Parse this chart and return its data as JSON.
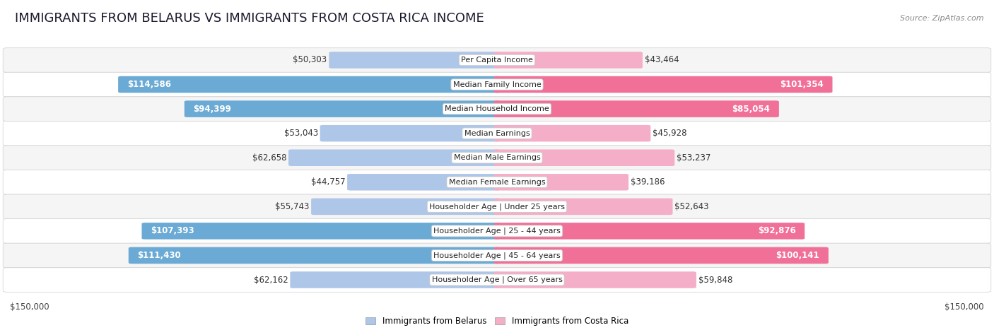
{
  "title": "IMMIGRANTS FROM BELARUS VS IMMIGRANTS FROM COSTA RICA INCOME",
  "source": "Source: ZipAtlas.com",
  "categories": [
    "Per Capita Income",
    "Median Family Income",
    "Median Household Income",
    "Median Earnings",
    "Median Male Earnings",
    "Median Female Earnings",
    "Householder Age | Under 25 years",
    "Householder Age | 25 - 44 years",
    "Householder Age | 45 - 64 years",
    "Householder Age | Over 65 years"
  ],
  "belarus_values": [
    50303,
    114586,
    94399,
    53043,
    62658,
    44757,
    55743,
    107393,
    111430,
    62162
  ],
  "costarica_values": [
    43464,
    101354,
    85054,
    45928,
    53237,
    39186,
    52643,
    92876,
    100141,
    59848
  ],
  "belarus_color_light": "#aec6e8",
  "belarus_color_dark": "#6aaad4",
  "costarica_color_light": "#f5aec8",
  "costarica_color_dark": "#f07098",
  "row_bg_even": "#f5f5f5",
  "row_bg_odd": "#ffffff",
  "max_value": 150000,
  "label_fontsize": 8.5,
  "cat_fontsize": 8.0,
  "title_fontsize": 13,
  "source_fontsize": 8,
  "legend_label_belarus": "Immigrants from Belarus",
  "legend_label_costarica": "Immigrants from Costa Rica",
  "axis_label_left": "$150,000",
  "axis_label_right": "$150,000",
  "belarus_large_threshold": 90000,
  "costarica_large_threshold": 80000
}
